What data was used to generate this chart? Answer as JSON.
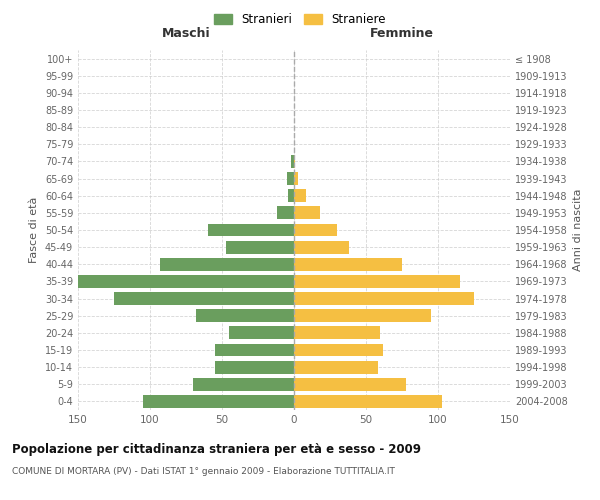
{
  "age_groups": [
    "0-4",
    "5-9",
    "10-14",
    "15-19",
    "20-24",
    "25-29",
    "30-34",
    "35-39",
    "40-44",
    "45-49",
    "50-54",
    "55-59",
    "60-64",
    "65-69",
    "70-74",
    "75-79",
    "80-84",
    "85-89",
    "90-94",
    "95-99",
    "100+"
  ],
  "birth_years": [
    "2004-2008",
    "1999-2003",
    "1994-1998",
    "1989-1993",
    "1984-1988",
    "1979-1983",
    "1974-1978",
    "1969-1973",
    "1964-1968",
    "1959-1963",
    "1954-1958",
    "1949-1953",
    "1944-1948",
    "1939-1943",
    "1934-1938",
    "1929-1933",
    "1924-1928",
    "1919-1923",
    "1914-1918",
    "1909-1913",
    "≤ 1908"
  ],
  "maschi": [
    105,
    70,
    55,
    55,
    45,
    68,
    125,
    150,
    93,
    47,
    60,
    12,
    4,
    5,
    2,
    0,
    0,
    0,
    0,
    0,
    0
  ],
  "femmine": [
    103,
    78,
    58,
    62,
    60,
    95,
    125,
    115,
    75,
    38,
    30,
    18,
    8,
    3,
    1,
    0,
    0,
    0,
    0,
    0,
    0
  ],
  "male_color": "#6a9e5e",
  "female_color": "#f5bf42",
  "title": "Popolazione per cittadinanza straniera per età e sesso - 2009",
  "subtitle": "COMUNE DI MORTARA (PV) - Dati ISTAT 1° gennaio 2009 - Elaborazione TUTTITALIA.IT",
  "ylabel_left": "Fasce di età",
  "ylabel_right": "Anni di nascita",
  "xlabel_left": "Maschi",
  "xlabel_right": "Femmine",
  "legend_male": "Stranieri",
  "legend_female": "Straniere",
  "xlim": 150,
  "background_color": "#ffffff",
  "grid_color": "#cccccc",
  "dashed_line_color": "#aaaaaa"
}
